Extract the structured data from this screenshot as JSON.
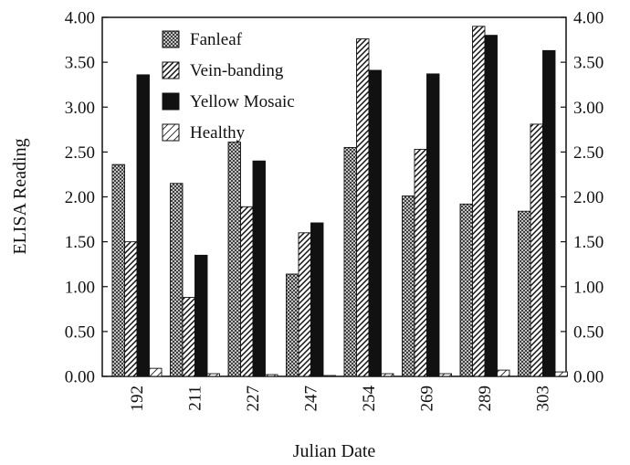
{
  "chart_data": {
    "type": "bar",
    "categories": [
      "192",
      "211",
      "227",
      "247",
      "254",
      "269",
      "289",
      "303"
    ],
    "xlabel": "Julian Date",
    "ylabel": "ELISA Reading",
    "ylim": [
      0,
      4.0
    ],
    "yticks": [
      "0.00",
      "0.50",
      "1.00",
      "1.50",
      "2.00",
      "2.50",
      "3.00",
      "3.50",
      "4.00"
    ],
    "right_axis_mirrors_left": true,
    "legend_position": "top-left",
    "series": [
      {
        "name": "Fanleaf",
        "pattern": "crosshatch",
        "values": [
          2.36,
          2.15,
          2.61,
          1.14,
          2.55,
          2.01,
          1.92,
          1.84
        ]
      },
      {
        "name": "Vein-banding",
        "pattern": "diagonal",
        "values": [
          1.5,
          0.88,
          1.89,
          1.6,
          3.76,
          2.53,
          3.9,
          2.81
        ]
      },
      {
        "name": "Yellow Mosaic",
        "pattern": "solid",
        "values": [
          3.36,
          1.35,
          2.4,
          1.71,
          3.41,
          3.37,
          3.8,
          3.63
        ]
      },
      {
        "name": "Healthy",
        "pattern": "light-diagonal",
        "values": [
          0.09,
          0.03,
          0.02,
          0.01,
          0.03,
          0.03,
          0.07,
          0.05
        ]
      }
    ],
    "colors": {
      "ink": "#111111",
      "background": "#ffffff"
    }
  }
}
